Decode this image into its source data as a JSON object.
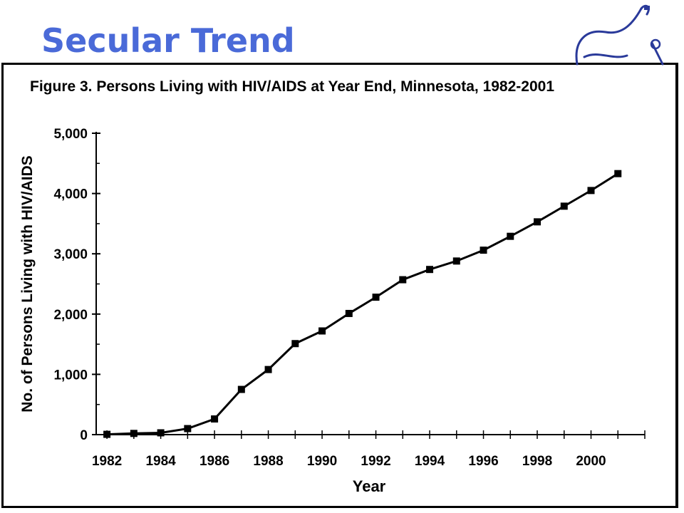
{
  "slide": {
    "title": "Secular Trend"
  },
  "colors": {
    "title": "#4a6ad8",
    "stethoscope": "#2a3a9a",
    "line": "#000000"
  },
  "decoration": {
    "icon": "stethoscope-icon"
  },
  "chart_data": {
    "type": "line",
    "title": "Figure 3.  Persons Living with HIV/AIDS at Year End, Minnesota, 1982-2001",
    "xlabel": "Year",
    "ylabel": "No. of Persons Living with HIV/AIDS",
    "xlim": [
      1981.6,
      2002
    ],
    "ylim": [
      0,
      5000
    ],
    "x_ticks": [
      1982,
      1984,
      1986,
      1988,
      1990,
      1992,
      1994,
      1996,
      1998,
      2000
    ],
    "y_ticks": [
      0,
      1000,
      2000,
      3000,
      4000,
      5000
    ],
    "y_tick_labels": [
      "0",
      "1,000",
      "2,000",
      "3,000",
      "4,000",
      "5,000"
    ],
    "grid": false,
    "marker": "square",
    "series": [
      {
        "x": [
          1982,
          1983,
          1984,
          1985,
          1986,
          1987,
          1988,
          1989,
          1990,
          1991,
          1992,
          1993,
          1994,
          1995,
          1996,
          1997,
          1998,
          1999,
          2000,
          2001
        ],
        "values": [
          5,
          20,
          30,
          100,
          260,
          750,
          1080,
          1510,
          1720,
          2010,
          2280,
          2570,
          2740,
          2880,
          3060,
          3290,
          3530,
          3790,
          4050,
          4330
        ]
      }
    ]
  }
}
